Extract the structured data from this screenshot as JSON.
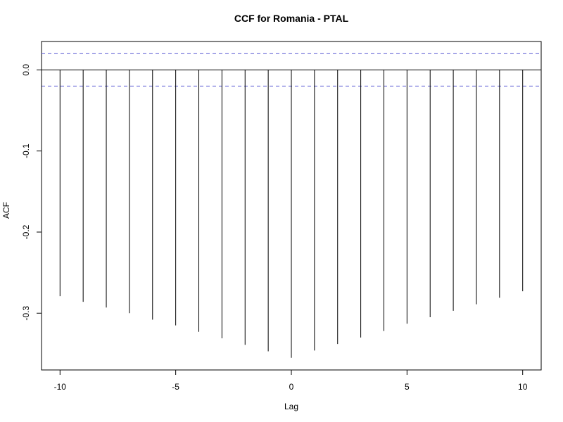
{
  "chart_data": {
    "type": "bar",
    "title": "CCF for Romania - PTAL",
    "xlabel": "Lag",
    "ylabel": "ACF",
    "x": [
      -10,
      -9,
      -8,
      -7,
      -6,
      -5,
      -4,
      -3,
      -2,
      -1,
      0,
      1,
      2,
      3,
      4,
      5,
      6,
      7,
      8,
      9,
      10
    ],
    "values": [
      -0.279,
      -0.286,
      -0.293,
      -0.3,
      -0.308,
      -0.315,
      -0.323,
      -0.331,
      -0.339,
      -0.347,
      -0.355,
      -0.346,
      -0.338,
      -0.33,
      -0.322,
      -0.313,
      -0.305,
      -0.297,
      -0.289,
      -0.281,
      -0.273
    ],
    "confidence_bound": 0.02,
    "xlim": [
      -10.8,
      10.8
    ],
    "ylim": [
      -0.37,
      0.035
    ],
    "xticks": [
      -10,
      -5,
      0,
      5,
      10
    ],
    "xtick_labels": [
      "-10",
      "-5",
      "0",
      "5",
      "10"
    ],
    "yticks": [
      0.0,
      -0.1,
      -0.2,
      -0.3
    ],
    "ytick_labels": [
      "0.0",
      "-0.1",
      "-0.2",
      "-0.3"
    ],
    "grid": false,
    "colors": {
      "bars": "#000000",
      "zero_line": "#000000",
      "confidence_lines": "#6b6bd8",
      "frame": "#000000"
    }
  }
}
